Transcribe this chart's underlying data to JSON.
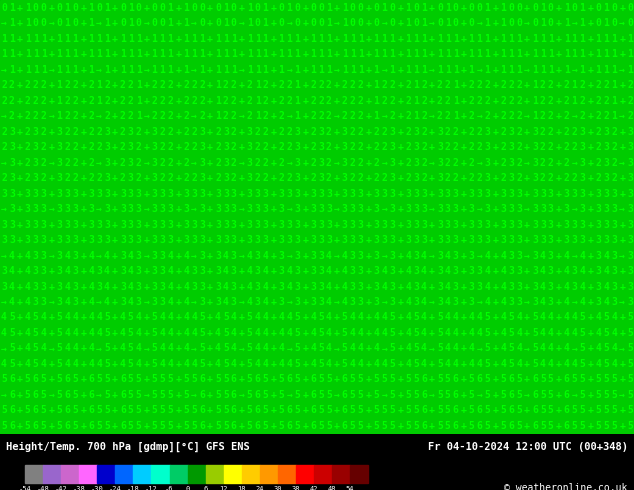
{
  "title_left": "Height/Temp. 700 hPa [gdmp][°C] GFS ENS",
  "title_right": "Fr 04-10-2024 12:00 UTC (00+348)",
  "copyright": "© weatheronline.co.uk",
  "background_color": "#00cc00",
  "text_color": "#00ff00",
  "colorbar_values": [
    -54,
    -48,
    -42,
    -38,
    -30,
    -24,
    -18,
    -12,
    -6,
    0,
    6,
    12,
    18,
    24,
    30,
    38,
    42,
    48,
    54
  ],
  "colorbar_colors": [
    "#808080",
    "#9966cc",
    "#cc66cc",
    "#ff66ff",
    "#0000cc",
    "#0066ff",
    "#00ccff",
    "#00ffcc",
    "#00cc66",
    "#009900",
    "#99cc00",
    "#ffff00",
    "#ffcc00",
    "#ff9900",
    "#ff6600",
    "#ff0000",
    "#cc0000",
    "#990000",
    "#660000"
  ],
  "bottom_bar_height": 0.08,
  "bottom_bar_color": "#000000",
  "wind_chars": [
    "5",
    "4",
    "3",
    "2",
    "1",
    "0",
    "+",
    "-"
  ],
  "grid_rows": 28,
  "grid_cols": 80,
  "char_color": "#00ff00",
  "char_color2": "#000000",
  "figsize": [
    6.34,
    4.9
  ],
  "dpi": 100
}
